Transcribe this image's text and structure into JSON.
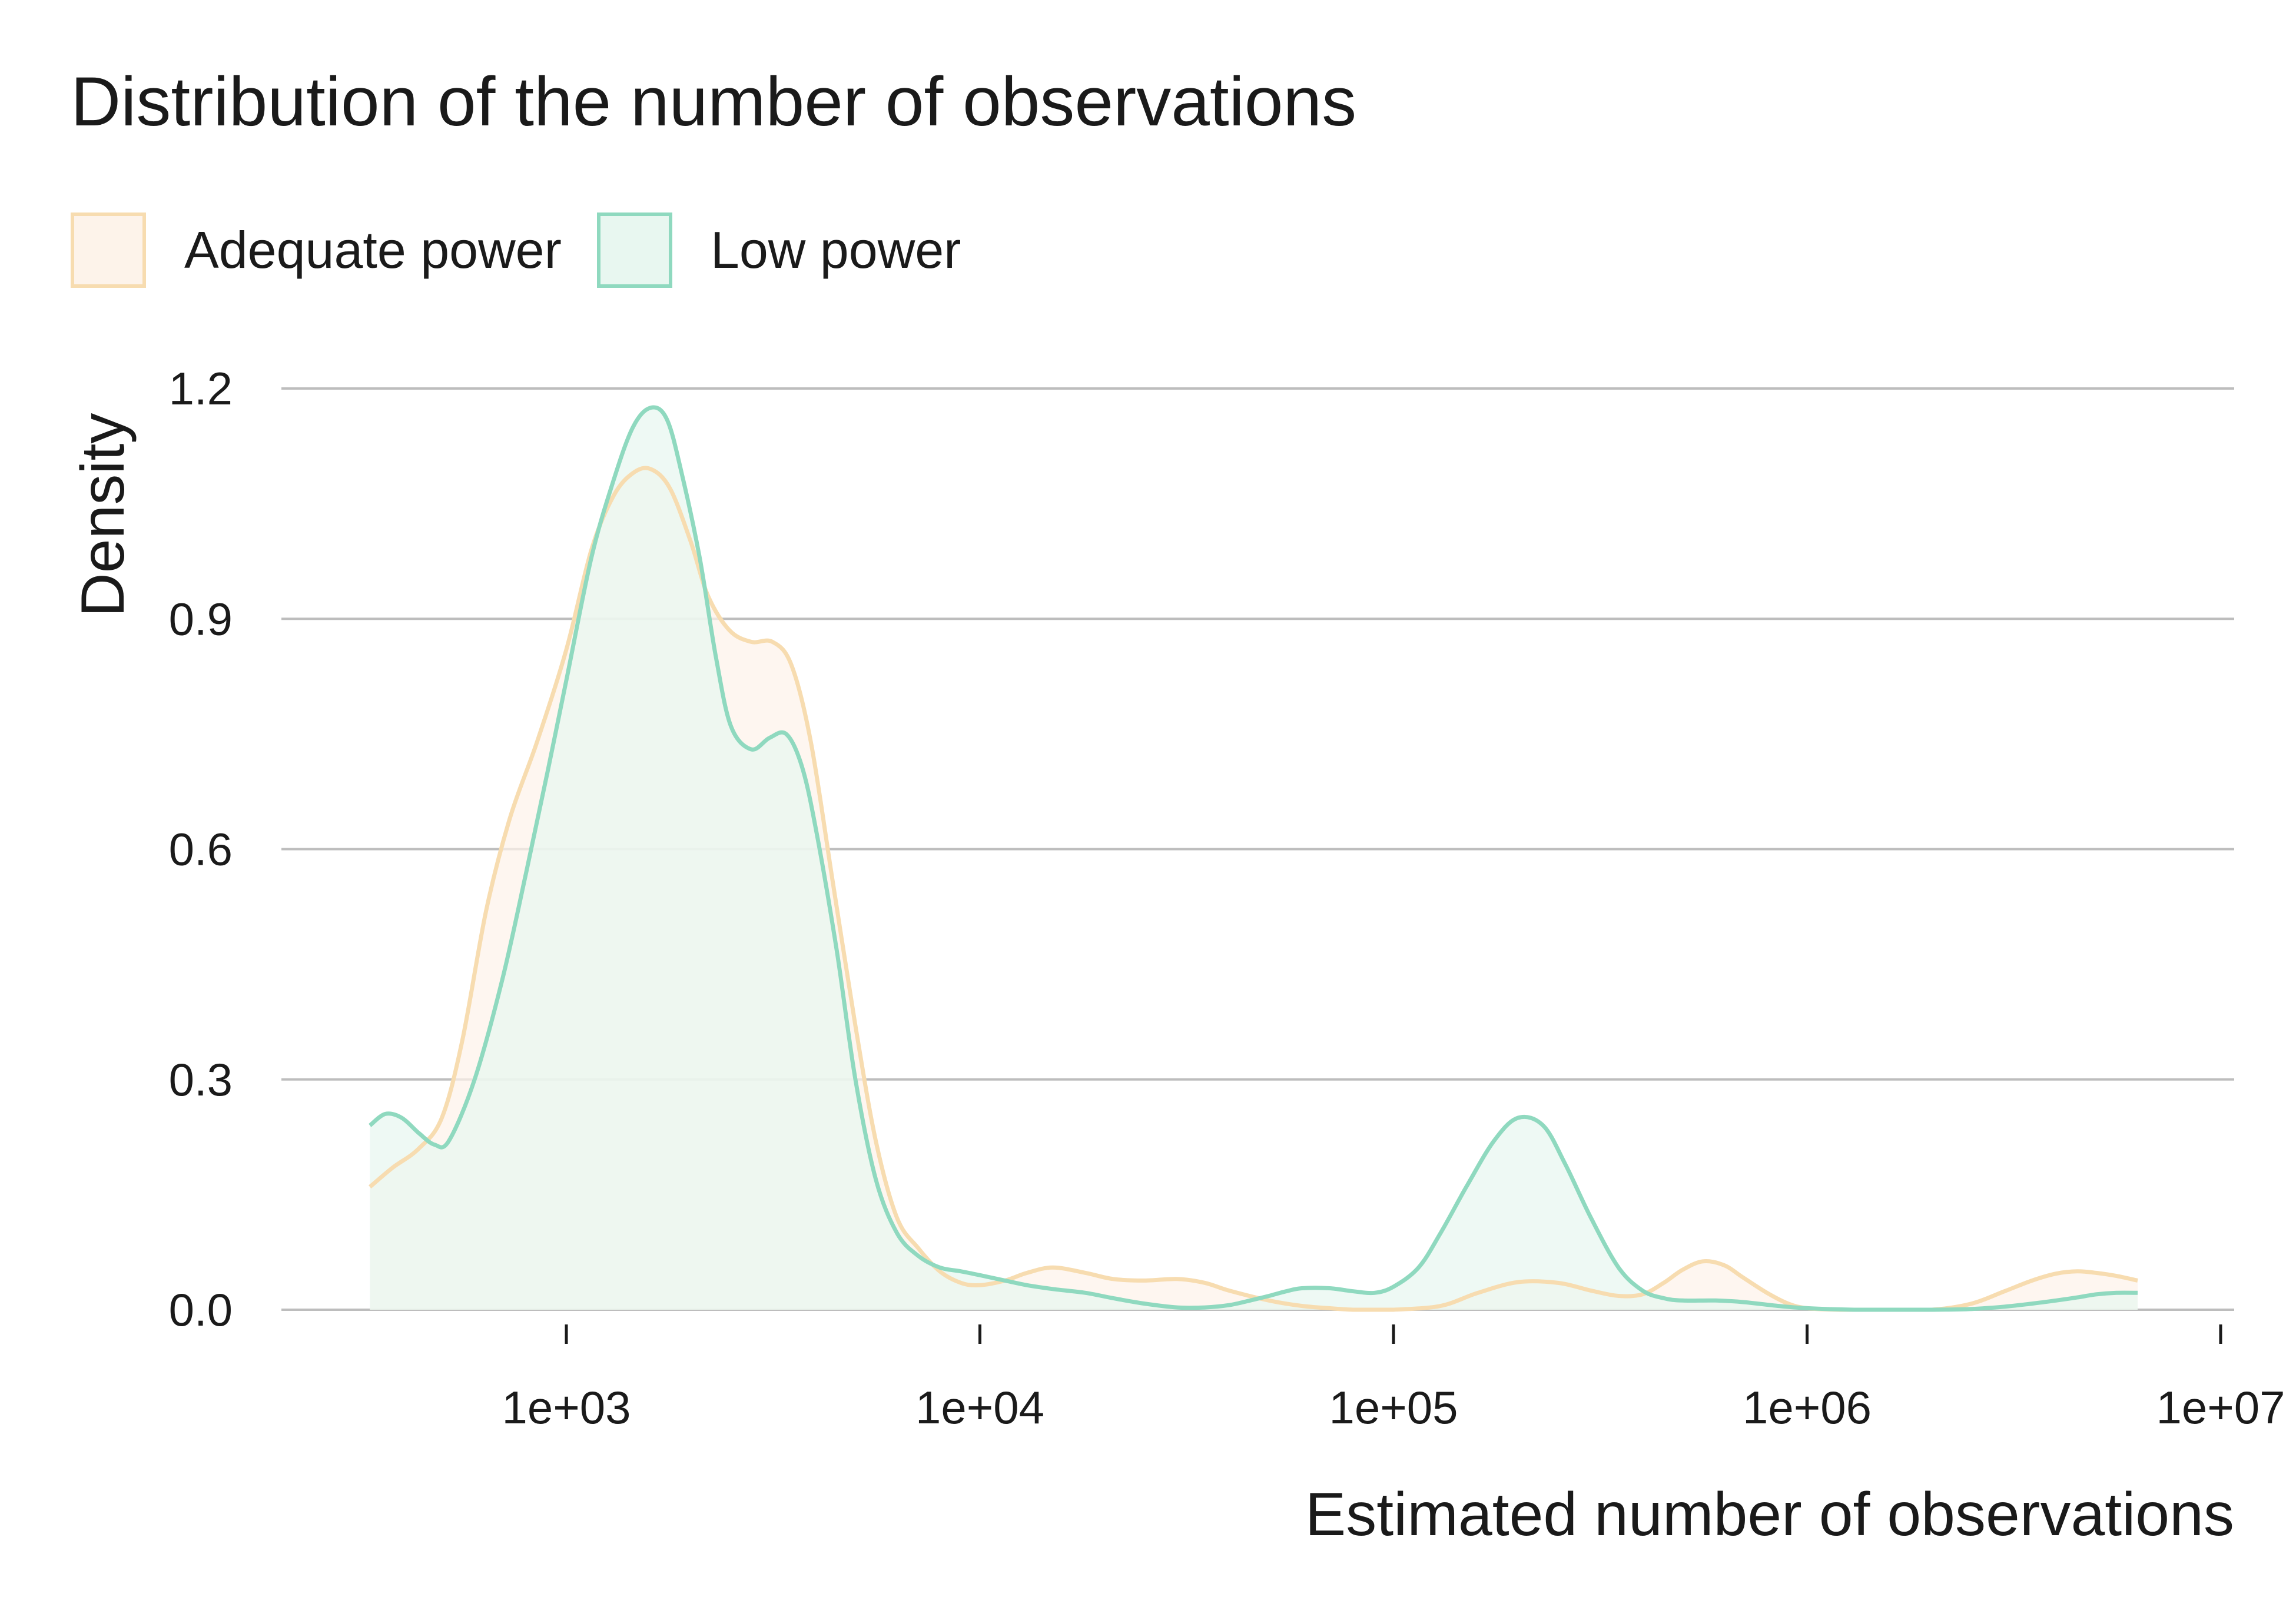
{
  "chart_data": {
    "type": "area",
    "title": "Distribution of the number of observations",
    "xlabel": "Estimated number of observations",
    "ylabel": "Density",
    "x_scale": "log10",
    "xlim": [
      200,
      10000000
    ],
    "ylim": [
      0,
      1.2
    ],
    "x_ticks": [
      1000,
      10000,
      100000,
      1000000,
      10000000
    ],
    "x_tick_labels": [
      "1e+03",
      "1e+04",
      "1e+05",
      "1e+06",
      "1e+07"
    ],
    "y_ticks": [
      0.0,
      0.3,
      0.6,
      0.9,
      1.2
    ],
    "y_tick_labels": [
      "0.0",
      "0.3",
      "0.6",
      "0.9",
      "1.2"
    ],
    "grid": "horizontal",
    "legend_position": "top-left",
    "series": [
      {
        "name": "Adequate power",
        "stroke": "#f7dcb0",
        "fill": "#fdf3ea",
        "x": [
          335,
          380,
          440,
          500,
          560,
          640,
          730,
          850,
          1000,
          1150,
          1300,
          1450,
          1600,
          1780,
          2000,
          2200,
          2480,
          2800,
          3150,
          3500,
          3900,
          4400,
          5000,
          5600,
          6300,
          7100,
          8000,
          9000,
          10000,
          11500,
          13000,
          15000,
          18000,
          21000,
          25000,
          30000,
          35000,
          40000,
          50000,
          60000,
          70000,
          80000,
          90000,
          100000,
          130000,
          160000,
          200000,
          250000,
          300000,
          350000,
          400000,
          450000,
          500000,
          560000,
          630000,
          700000,
          800000,
          900000,
          1000000,
          1200000,
          1500000,
          2000000,
          2500000,
          3000000,
          3500000,
          4000000,
          4500000,
          5000000,
          5600000,
          6300000
        ],
        "y": [
          0.16,
          0.185,
          0.21,
          0.25,
          0.35,
          0.52,
          0.64,
          0.74,
          0.86,
          0.99,
          1.06,
          1.09,
          1.095,
          1.07,
          1.0,
          0.93,
          0.885,
          0.87,
          0.87,
          0.84,
          0.74,
          0.56,
          0.37,
          0.22,
          0.12,
          0.08,
          0.05,
          0.035,
          0.032,
          0.038,
          0.048,
          0.055,
          0.048,
          0.04,
          0.038,
          0.04,
          0.035,
          0.025,
          0.012,
          0.005,
          0.002,
          0.0,
          0.0,
          0.0,
          0.005,
          0.022,
          0.036,
          0.035,
          0.025,
          0.018,
          0.02,
          0.035,
          0.052,
          0.063,
          0.058,
          0.042,
          0.022,
          0.008,
          0.002,
          0.0,
          0.0,
          0.0,
          0.008,
          0.024,
          0.038,
          0.047,
          0.05,
          0.048,
          0.044,
          0.038
        ]
      },
      {
        "name": "Low power",
        "stroke": "#8fd9bf",
        "fill": "#e8f7f0",
        "x": [
          335,
          365,
          400,
          440,
          480,
          520,
          600,
          700,
          800,
          900,
          1000,
          1150,
          1300,
          1450,
          1600,
          1750,
          1900,
          2100,
          2300,
          2500,
          2800,
          3100,
          3400,
          3700,
          4000,
          4500,
          5000,
          5600,
          6300,
          7100,
          8000,
          9000,
          10000,
          11500,
          13000,
          15000,
          18000,
          21000,
          25000,
          30000,
          35000,
          40000,
          45000,
          50000,
          55000,
          60000,
          70000,
          80000,
          90000,
          100000,
          115000,
          130000,
          150000,
          175000,
          200000,
          230000,
          260000,
          300000,
          350000,
          400000,
          450000,
          500000,
          600000,
          700000,
          850000,
          1000000,
          1300000,
          1600000,
          2000000,
          2500000,
          3000000,
          3500000,
          4000000,
          4500000,
          5000000,
          5600000,
          6300000
        ],
        "y": [
          0.24,
          0.255,
          0.25,
          0.23,
          0.215,
          0.22,
          0.3,
          0.43,
          0.57,
          0.7,
          0.82,
          0.98,
          1.08,
          1.15,
          1.175,
          1.16,
          1.09,
          0.98,
          0.85,
          0.76,
          0.73,
          0.745,
          0.75,
          0.71,
          0.63,
          0.47,
          0.3,
          0.17,
          0.1,
          0.07,
          0.055,
          0.05,
          0.045,
          0.038,
          0.032,
          0.027,
          0.022,
          0.015,
          0.008,
          0.003,
          0.003,
          0.006,
          0.012,
          0.018,
          0.024,
          0.028,
          0.028,
          0.024,
          0.022,
          0.03,
          0.055,
          0.1,
          0.16,
          0.22,
          0.25,
          0.24,
          0.19,
          0.12,
          0.055,
          0.025,
          0.015,
          0.012,
          0.012,
          0.01,
          0.005,
          0.002,
          0.0,
          0.0,
          0.0,
          0.001,
          0.004,
          0.008,
          0.012,
          0.016,
          0.02,
          0.022,
          0.022
        ]
      }
    ]
  }
}
